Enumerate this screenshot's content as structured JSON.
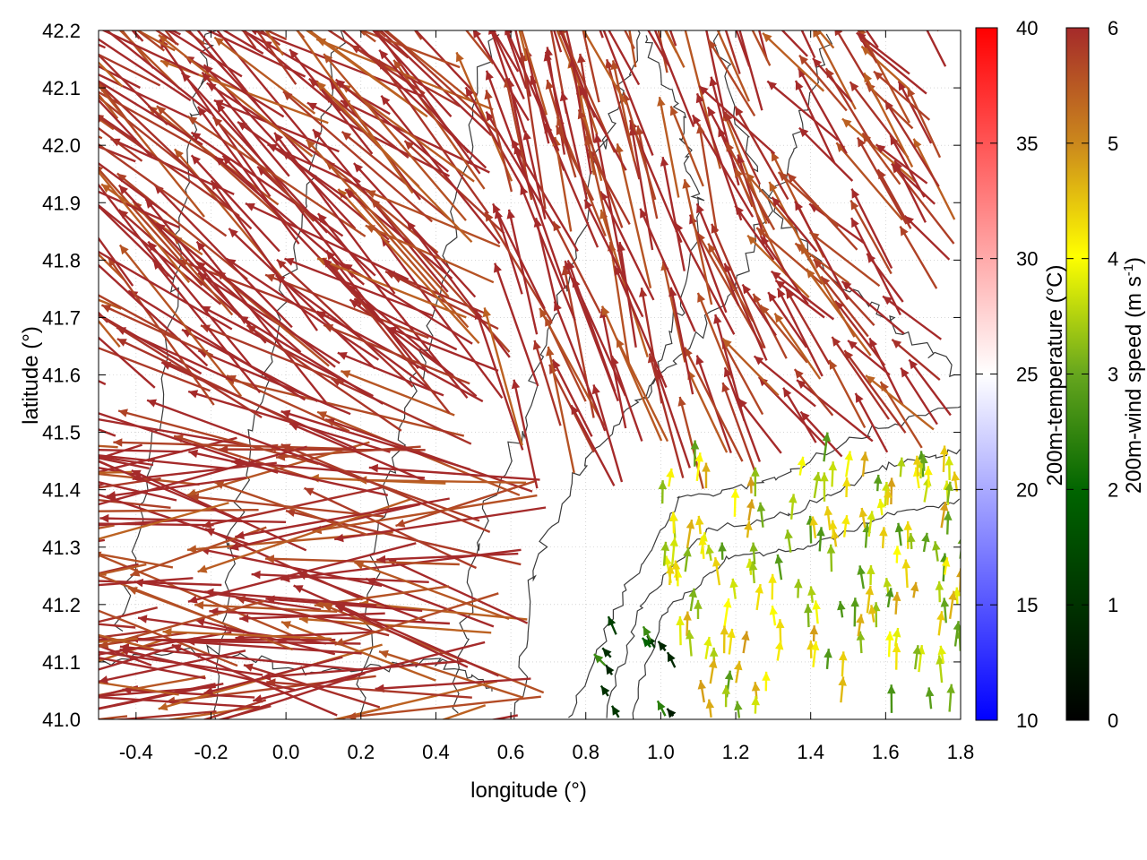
{
  "chart_data": {
    "type": "vector-field",
    "xlabel": "longitude (°)",
    "ylabel": "latitude (°)",
    "xlim": [
      -0.5,
      1.8
    ],
    "ylim": [
      41.0,
      42.2
    ],
    "x_ticks": [
      "-0.4",
      "-0.2",
      "0.0",
      "0.2",
      "0.4",
      "0.6",
      "0.8",
      "1.0",
      "1.2",
      "1.4",
      "1.6",
      "1.8"
    ],
    "y_ticks": [
      "41.0",
      "41.1",
      "41.2",
      "41.3",
      "41.4",
      "41.5",
      "41.6",
      "41.7",
      "41.8",
      "41.9",
      "42.0",
      "42.1",
      "42.2"
    ],
    "grid": true,
    "overlay": "terrain elevation contours (dark gray)",
    "colorbars": [
      {
        "label": "200m-temperature (°C)",
        "range": [
          10,
          40
        ],
        "ticks": [
          "10",
          "15",
          "20",
          "25",
          "30",
          "35",
          "40"
        ],
        "colors": [
          "#0000ff",
          "#ffffff",
          "#ff0000"
        ]
      },
      {
        "label_main": "200m-wind speed (m s",
        "label_sup": "-1",
        "label_end": ")",
        "range": [
          0,
          6
        ],
        "ticks": [
          "0",
          "1",
          "2",
          "3",
          "4",
          "5",
          "6"
        ],
        "colors": [
          "#000000",
          "#006400",
          "#ffff00",
          "#b22222"
        ]
      }
    ],
    "vector_regions": [
      {
        "region": "west",
        "lon": [
          -0.5,
          0.7
        ],
        "lat": [
          41.0,
          41.5
        ],
        "direction_deg": 178,
        "speed": 6,
        "length_deg": 0.5
      },
      {
        "region": "northwest",
        "lon": [
          -0.5,
          0.6
        ],
        "lat": [
          41.5,
          42.2
        ],
        "direction_deg": 152,
        "speed": 6,
        "length_deg": 0.4
      },
      {
        "region": "north-central",
        "lon": [
          0.6,
          1.3
        ],
        "lat": [
          41.4,
          42.2
        ],
        "direction_deg": 118,
        "speed": 6,
        "length_deg": 0.22
      },
      {
        "region": "northeast",
        "lon": [
          1.3,
          1.8
        ],
        "lat": [
          41.45,
          42.2
        ],
        "direction_deg": 140,
        "speed": 6,
        "length_deg": 0.18
      },
      {
        "region": "southeast",
        "lon": [
          1.0,
          1.8
        ],
        "lat": [
          41.0,
          41.45
        ],
        "direction_deg": 90,
        "speed": 3.8,
        "length_deg": 0.04
      },
      {
        "region": "coastal-calm",
        "lon": [
          0.85,
          1.05
        ],
        "lat": [
          41.0,
          41.15
        ],
        "direction_deg": 135,
        "speed": 1.5,
        "length_deg": 0.03
      }
    ]
  }
}
